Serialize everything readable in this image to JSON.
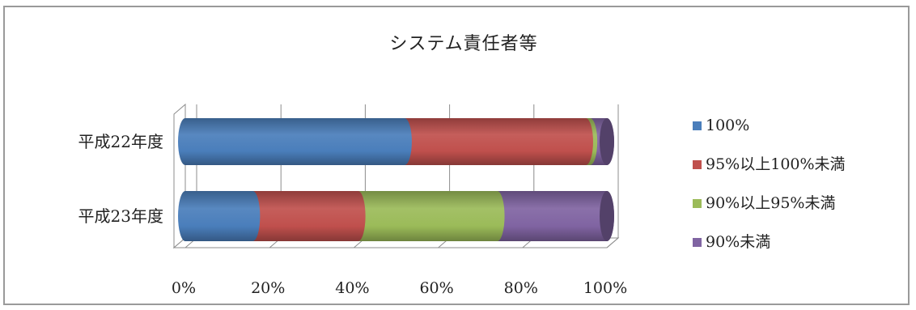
{
  "chart_data": {
    "type": "bar",
    "orientation": "horizontal",
    "stacked": "percent",
    "title": "システム責任者等",
    "categories": [
      "平成22年度",
      "平成23年度"
    ],
    "series": [
      {
        "name": "100%",
        "color": "#4a7ebb",
        "values": [
          52,
          16
        ]
      },
      {
        "name": "95%以上100%未満",
        "color": "#c0504d",
        "values": [
          43,
          25
        ]
      },
      {
        "name": "90%以上95%未満",
        "color": "#9bbb59",
        "values": [
          1,
          33
        ]
      },
      {
        "name": "90%未満",
        "color": "#8064a2",
        "values": [
          4,
          26
        ]
      }
    ],
    "xlim": [
      0,
      100
    ],
    "x_ticks": [
      "0%",
      "20%",
      "40%",
      "60%",
      "80%",
      "100%"
    ],
    "grid": true,
    "legend_position": "right"
  }
}
